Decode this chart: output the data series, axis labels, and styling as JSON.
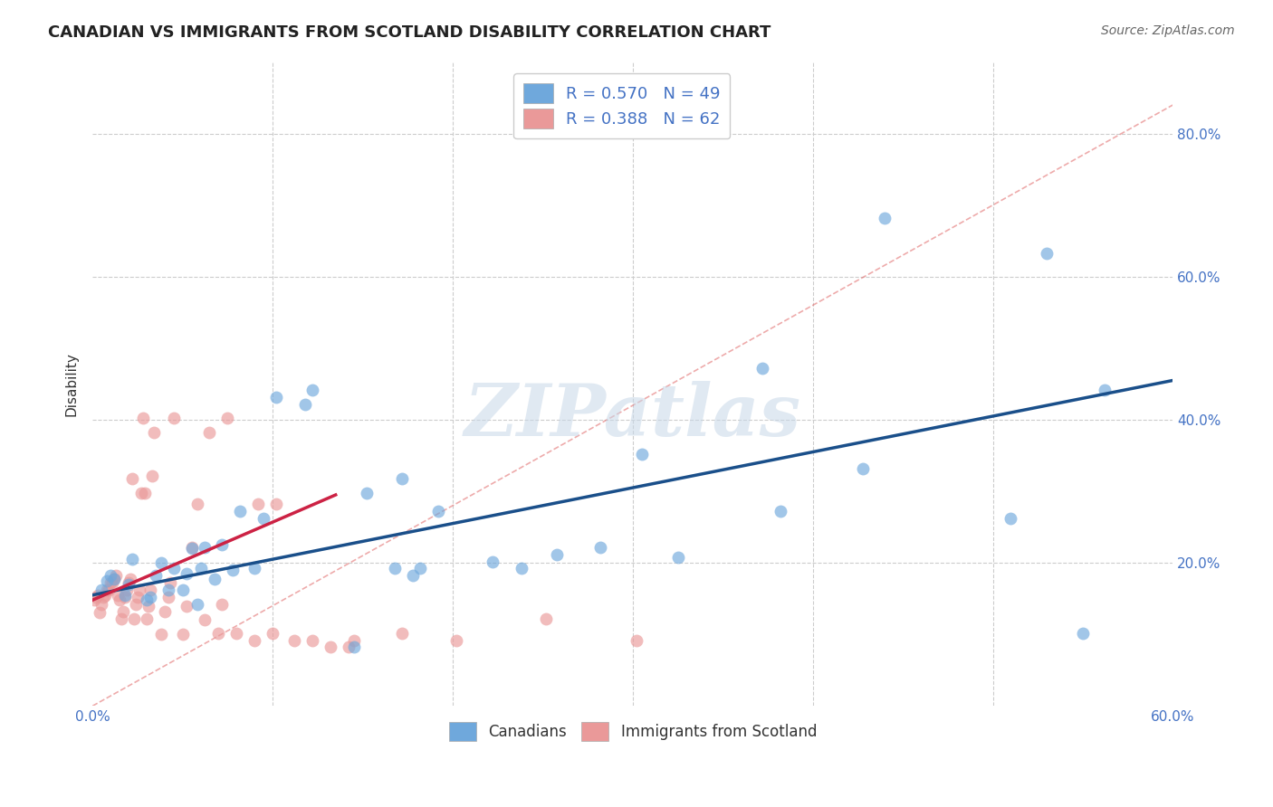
{
  "title": "CANADIAN VS IMMIGRANTS FROM SCOTLAND DISABILITY CORRELATION CHART",
  "source": "Source: ZipAtlas.com",
  "tick_color": "#4472c4",
  "ylabel": "Disability",
  "xlim": [
    0.0,
    0.6
  ],
  "ylim": [
    0.0,
    0.9
  ],
  "xticks": [
    0.0,
    0.1,
    0.2,
    0.3,
    0.4,
    0.5,
    0.6
  ],
  "yticks": [
    0.0,
    0.2,
    0.4,
    0.6,
    0.8
  ],
  "ytick_labels_right": [
    "",
    "20.0%",
    "40.0%",
    "60.0%",
    "80.0%"
  ],
  "xtick_labels": [
    "0.0%",
    "",
    "",
    "",
    "",
    "",
    "60.0%"
  ],
  "canadians_R": 0.57,
  "canadians_N": 49,
  "immigrants_R": 0.388,
  "immigrants_N": 62,
  "blue_color": "#6fa8dc",
  "pink_color": "#ea9999",
  "blue_line_color": "#1a4f8a",
  "pink_line_color": "#cc2244",
  "diag_line_color": "#e06666",
  "background_color": "#ffffff",
  "grid_color": "#cccccc",
  "canadians_x": [
    0.005,
    0.008,
    0.01,
    0.012,
    0.018,
    0.02,
    0.022,
    0.03,
    0.032,
    0.035,
    0.038,
    0.042,
    0.045,
    0.05,
    0.052,
    0.055,
    0.058,
    0.06,
    0.062,
    0.068,
    0.072,
    0.078,
    0.082,
    0.09,
    0.095,
    0.102,
    0.118,
    0.122,
    0.145,
    0.152,
    0.168,
    0.172,
    0.178,
    0.182,
    0.192,
    0.222,
    0.238,
    0.258,
    0.282,
    0.305,
    0.325,
    0.372,
    0.382,
    0.428,
    0.44,
    0.51,
    0.53,
    0.55,
    0.562
  ],
  "canadians_y": [
    0.162,
    0.175,
    0.182,
    0.178,
    0.155,
    0.17,
    0.205,
    0.148,
    0.152,
    0.182,
    0.2,
    0.162,
    0.192,
    0.162,
    0.185,
    0.22,
    0.142,
    0.192,
    0.222,
    0.178,
    0.225,
    0.19,
    0.272,
    0.192,
    0.262,
    0.432,
    0.422,
    0.442,
    0.082,
    0.298,
    0.192,
    0.318,
    0.182,
    0.192,
    0.272,
    0.202,
    0.192,
    0.212,
    0.222,
    0.352,
    0.208,
    0.472,
    0.272,
    0.332,
    0.682,
    0.262,
    0.632,
    0.102,
    0.442
  ],
  "immigrants_x": [
    0.001,
    0.002,
    0.003,
    0.004,
    0.005,
    0.006,
    0.007,
    0.008,
    0.009,
    0.01,
    0.011,
    0.012,
    0.013,
    0.014,
    0.015,
    0.016,
    0.017,
    0.018,
    0.019,
    0.02,
    0.021,
    0.022,
    0.023,
    0.024,
    0.025,
    0.026,
    0.027,
    0.028,
    0.029,
    0.03,
    0.031,
    0.032,
    0.033,
    0.034,
    0.038,
    0.04,
    0.042,
    0.043,
    0.045,
    0.05,
    0.052,
    0.055,
    0.058,
    0.062,
    0.065,
    0.07,
    0.072,
    0.075,
    0.08,
    0.09,
    0.092,
    0.1,
    0.102,
    0.112,
    0.122,
    0.132,
    0.142,
    0.145,
    0.172,
    0.202,
    0.252,
    0.302
  ],
  "immigrants_y": [
    0.148,
    0.152,
    0.155,
    0.13,
    0.142,
    0.152,
    0.155,
    0.162,
    0.162,
    0.172,
    0.172,
    0.178,
    0.182,
    0.155,
    0.148,
    0.122,
    0.132,
    0.152,
    0.162,
    0.172,
    0.178,
    0.318,
    0.122,
    0.142,
    0.152,
    0.162,
    0.298,
    0.402,
    0.298,
    0.122,
    0.14,
    0.162,
    0.322,
    0.382,
    0.1,
    0.132,
    0.152,
    0.172,
    0.402,
    0.1,
    0.14,
    0.222,
    0.282,
    0.12,
    0.382,
    0.102,
    0.142,
    0.402,
    0.102,
    0.092,
    0.282,
    0.102,
    0.282,
    0.092,
    0.092,
    0.082,
    0.082,
    0.092,
    0.102,
    0.092,
    0.122,
    0.092
  ],
  "watermark": "ZIPatlas",
  "legend_blue_label": "R = 0.570   N = 49",
  "legend_pink_label": "R = 0.388   N = 62",
  "canadians_bottom_label": "Canadians",
  "immigrants_bottom_label": "Immigrants from Scotland",
  "blue_line_x": [
    0.0,
    0.6
  ],
  "blue_line_y": [
    0.155,
    0.455
  ],
  "pink_line_x": [
    0.0,
    0.135
  ],
  "pink_line_y": [
    0.148,
    0.295
  ],
  "diag_line_x": [
    0.0,
    0.6
  ],
  "diag_line_y": [
    0.0,
    0.84
  ]
}
